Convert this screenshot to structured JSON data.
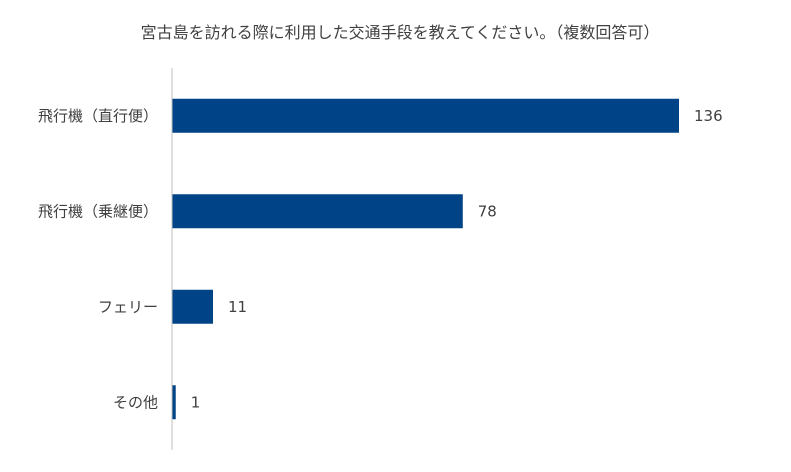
{
  "chart_data": {
    "type": "bar",
    "orientation": "horizontal",
    "title": "宮古島を訪れる際に利用した交通手段を教えてください。（複数回答可）",
    "categories": [
      "飛行機（直行便）",
      "飛行機（乗継便）",
      "フェリー",
      "その他"
    ],
    "values": [
      136,
      78,
      11,
      1
    ],
    "xlim": [
      0,
      136
    ],
    "grid": false,
    "legend": "none",
    "data_labels": true,
    "bar_color": "#004386",
    "axis_color": "#bfbfbf"
  }
}
